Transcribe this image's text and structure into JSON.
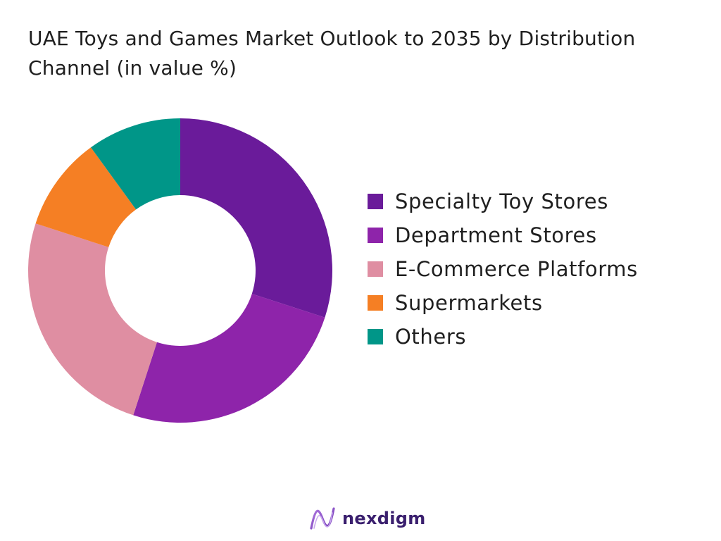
{
  "chart_data": {
    "type": "pie",
    "title": "UAE Toys and Games Market Outlook to 2035 by Distribution Channel (in value %)",
    "donut": true,
    "legend_position": "right",
    "categories": [
      "Specialty Toy Stores",
      "Department Stores",
      "E-Commerce Platforms",
      "Supermarkets",
      "Others"
    ],
    "values": [
      30,
      25,
      25,
      10,
      10
    ],
    "colors": [
      "#6a1b9a",
      "#8e24aa",
      "#df8ea2",
      "#f57f24",
      "#009688"
    ]
  },
  "brand": {
    "name": "nexdigm",
    "logo_icon": "nexdigm-wave-logo"
  }
}
